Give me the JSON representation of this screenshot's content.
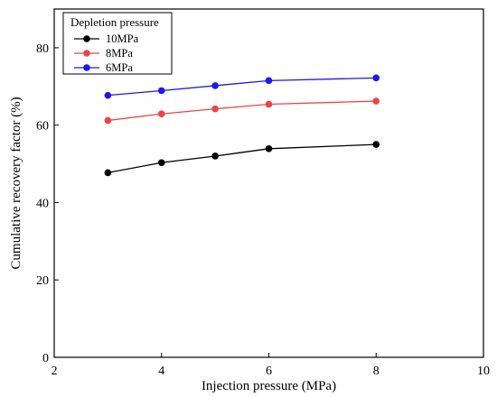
{
  "chart_data": {
    "type": "line",
    "xlabel": "Injection pressure (MPa)",
    "ylabel": "Cumulative recovery factor (%)",
    "xlim": [
      2,
      10
    ],
    "ylim": [
      0,
      90
    ],
    "xticks": [
      2,
      4,
      6,
      8,
      10
    ],
    "yticks": [
      0,
      20,
      40,
      60,
      80
    ],
    "grid": false,
    "legend": {
      "title": "Depletion pressure",
      "placement": "top-left"
    },
    "x": [
      3,
      4,
      5,
      6,
      8
    ],
    "series": [
      {
        "name": "10MPa",
        "color": "#000000",
        "values": [
          47.7,
          50.3,
          52.0,
          53.9,
          55.0
        ]
      },
      {
        "name": "8MPa",
        "color": "#ee4444",
        "values": [
          61.2,
          62.9,
          64.2,
          65.4,
          66.2
        ]
      },
      {
        "name": "6MPa",
        "color": "#1a1aee",
        "values": [
          67.7,
          68.9,
          70.2,
          71.5,
          72.2
        ]
      }
    ]
  }
}
